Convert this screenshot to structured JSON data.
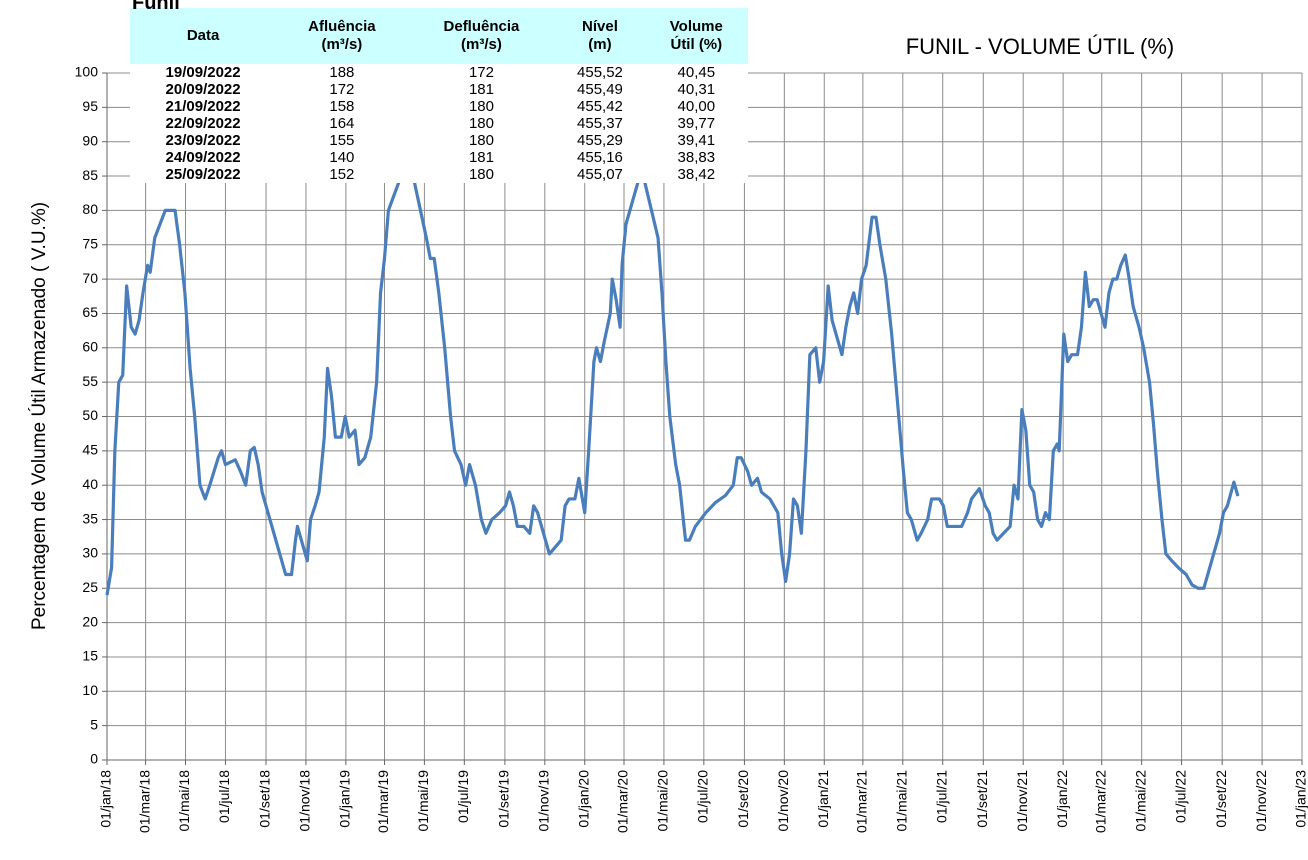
{
  "chart_data": {
    "type": "line",
    "title": "FUNIL - VOLUME ÚTIL (%)",
    "y_label": "Percentagem de Volume Útil Armazenado ( V.U.%)",
    "x": [
      "2018-01-01",
      "2018-01-08",
      "2018-01-13",
      "2018-01-19",
      "2018-01-25",
      "2018-01-31",
      "2018-02-07",
      "2018-02-13",
      "2018-02-19",
      "2018-02-25",
      "2018-03-04",
      "2018-03-08",
      "2018-03-15",
      "2018-03-31",
      "2018-04-15",
      "2018-04-22",
      "2018-04-30",
      "2018-05-08",
      "2018-05-15",
      "2018-05-23",
      "2018-05-31",
      "2018-06-07",
      "2018-06-20",
      "2018-06-25",
      "2018-07-01",
      "2018-07-16",
      "2018-07-24",
      "2018-08-01",
      "2018-08-08",
      "2018-08-14",
      "2018-08-20",
      "2018-08-26",
      "2018-09-07",
      "2018-09-19",
      "2018-10-01",
      "2018-10-10",
      "2018-10-16",
      "2018-10-19",
      "2018-10-25",
      "2018-11-03",
      "2018-11-08",
      "2018-11-15",
      "2018-11-21",
      "2018-11-29",
      "2018-12-04",
      "2018-12-10",
      "2018-12-16",
      "2018-12-25",
      "2018-12-31",
      "2019-01-06",
      "2019-01-15",
      "2019-01-21",
      "2019-01-30",
      "2019-02-08",
      "2019-02-17",
      "2019-02-23",
      "2019-03-01",
      "2019-03-07",
      "2019-04-07",
      "2019-05-04",
      "2019-05-10",
      "2019-05-16",
      "2019-05-23",
      "2019-06-01",
      "2019-06-10",
      "2019-06-16",
      "2019-06-26",
      "2019-07-03",
      "2019-07-09",
      "2019-07-18",
      "2019-07-27",
      "2019-08-03",
      "2019-08-12",
      "2019-08-24",
      "2019-09-02",
      "2019-09-08",
      "2019-09-14",
      "2019-09-20",
      "2019-09-30",
      "2019-10-09",
      "2019-10-15",
      "2019-10-21",
      "2019-10-30",
      "2019-11-08",
      "2019-11-17",
      "2019-11-26",
      "2019-12-02",
      "2019-12-08",
      "2019-12-17",
      "2019-12-23",
      "2020-01-01",
      "2020-01-07",
      "2020-01-15",
      "2020-01-19",
      "2020-01-25",
      "2020-01-31",
      "2020-02-09",
      "2020-02-12",
      "2020-02-18",
      "2020-02-24",
      "2020-02-27",
      "2020-03-04",
      "2020-03-28",
      "2020-04-22",
      "2020-04-28",
      "2020-05-04",
      "2020-05-10",
      "2020-05-19",
      "2020-05-25",
      "2020-06-03",
      "2020-06-09",
      "2020-06-18",
      "2020-07-04",
      "2020-07-19",
      "2020-08-03",
      "2020-08-15",
      "2020-08-21",
      "2020-08-27",
      "2020-09-06",
      "2020-09-12",
      "2020-09-21",
      "2020-09-27",
      "2020-10-10",
      "2020-10-22",
      "2020-10-28",
      "2020-11-03",
      "2020-11-09",
      "2020-11-15",
      "2020-11-21",
      "2020-11-27",
      "2020-12-04",
      "2020-12-10",
      "2020-12-19",
      "2020-12-25",
      "2020-12-31",
      "2021-01-07",
      "2021-01-13",
      "2021-01-19",
      "2021-01-28",
      "2021-02-03",
      "2021-02-09",
      "2021-02-15",
      "2021-02-21",
      "2021-02-27",
      "2021-03-06",
      "2021-03-15",
      "2021-03-21",
      "2021-03-27",
      "2021-04-05",
      "2021-04-14",
      "2021-04-23",
      "2021-05-02",
      "2021-05-08",
      "2021-05-14",
      "2021-05-23",
      "2021-05-29",
      "2021-06-08",
      "2021-06-14",
      "2021-06-26",
      "2021-07-02",
      "2021-07-08",
      "2021-07-17",
      "2021-07-30",
      "2021-08-08",
      "2021-08-14",
      "2021-08-26",
      "2021-09-04",
      "2021-09-10",
      "2021-09-16",
      "2021-09-22",
      "2021-10-02",
      "2021-10-12",
      "2021-10-18",
      "2021-10-24",
      "2021-10-30",
      "2021-11-05",
      "2021-11-11",
      "2021-11-17",
      "2021-11-23",
      "2021-11-29",
      "2021-12-05",
      "2021-12-11",
      "2021-12-17",
      "2021-12-23",
      "2021-12-26",
      "2022-01-02",
      "2022-01-08",
      "2022-01-14",
      "2022-01-23",
      "2022-01-29",
      "2022-02-04",
      "2022-02-10",
      "2022-02-16",
      "2022-02-22",
      "2022-02-28",
      "2022-03-06",
      "2022-03-12",
      "2022-03-18",
      "2022-03-24",
      "2022-03-30",
      "2022-04-06",
      "2022-04-12",
      "2022-04-18",
      "2022-04-27",
      "2022-05-04",
      "2022-05-13",
      "2022-05-19",
      "2022-05-25",
      "2022-06-01",
      "2022-06-07",
      "2022-06-16",
      "2022-06-26",
      "2022-07-08",
      "2022-07-17",
      "2022-07-26",
      "2022-08-04",
      "2022-08-10",
      "2022-08-19",
      "2022-08-28",
      "2022-09-03",
      "2022-09-09",
      "2022-09-19",
      "2022-09-25"
    ],
    "series": [
      {
        "name": "Volume Útil",
        "color": "#4a7ebb",
        "values": [
          24,
          28,
          45,
          55,
          56,
          69,
          63,
          62,
          64,
          68,
          72,
          71,
          76,
          80,
          80,
          75,
          68,
          57,
          50,
          40,
          38,
          40,
          44,
          45,
          43,
          43.7,
          42,
          40,
          45,
          45.5,
          43,
          39,
          35,
          31,
          27,
          27,
          32,
          34,
          32,
          29,
          35,
          37,
          39,
          47,
          57,
          53,
          47,
          47,
          50,
          47,
          48,
          43,
          44,
          47,
          55,
          68,
          73,
          80,
          88,
          76,
          73,
          73,
          68,
          60,
          50,
          45,
          43,
          40,
          43,
          40,
          35,
          33,
          35,
          36,
          37,
          39,
          37,
          34,
          34,
          33,
          37,
          36,
          33,
          30,
          31,
          32,
          37,
          38,
          38,
          41,
          36,
          45,
          58,
          60,
          58,
          61,
          65,
          70,
          67,
          63,
          72,
          78,
          86,
          76,
          68,
          58,
          50,
          43,
          40,
          32,
          32,
          34,
          36,
          37.5,
          38.5,
          40,
          44,
          44,
          42,
          40,
          41,
          39,
          38,
          36,
          30,
          26,
          30,
          38,
          37,
          33,
          45,
          59,
          60,
          55,
          58,
          69,
          64,
          62,
          59,
          63,
          66,
          68,
          65,
          70,
          72,
          79,
          79,
          75,
          70,
          62,
          52,
          42,
          36,
          35,
          32,
          33,
          35,
          38,
          38,
          37,
          34,
          34,
          34,
          36,
          38,
          39.5,
          37,
          36,
          33,
          32,
          33,
          34,
          40,
          38,
          51,
          48,
          40,
          39,
          35,
          34,
          36,
          35,
          45,
          46,
          45,
          62,
          58,
          59,
          59,
          63,
          71,
          66,
          67,
          67,
          65,
          63,
          68,
          70,
          70,
          72,
          73.5,
          70,
          66,
          63,
          60,
          55,
          49,
          42,
          35,
          30,
          29,
          28,
          27,
          25.5,
          25,
          25,
          27,
          30,
          33,
          36,
          37,
          40.45,
          38.42
        ]
      }
    ],
    "xlim": [
      "2018-01-01",
      "2023-01-01"
    ],
    "xticks": [
      {
        "value": "2018-01-01",
        "label": "01/jan/18"
      },
      {
        "value": "2018-03-01",
        "label": "01/mar/18"
      },
      {
        "value": "2018-05-01",
        "label": "01/mai/18"
      },
      {
        "value": "2018-07-01",
        "label": "01/jul/18"
      },
      {
        "value": "2018-09-01",
        "label": "01/set/18"
      },
      {
        "value": "2018-11-01",
        "label": "01/nov/18"
      },
      {
        "value": "2019-01-01",
        "label": "01/jan/19"
      },
      {
        "value": "2019-03-01",
        "label": "01/mar/19"
      },
      {
        "value": "2019-05-01",
        "label": "01/mai/19"
      },
      {
        "value": "2019-07-01",
        "label": "01/jul/19"
      },
      {
        "value": "2019-09-01",
        "label": "01/set/19"
      },
      {
        "value": "2019-11-01",
        "label": "01/nov/19"
      },
      {
        "value": "2020-01-01",
        "label": "01/jan/20"
      },
      {
        "value": "2020-03-01",
        "label": "01/mar/20"
      },
      {
        "value": "2020-05-01",
        "label": "01/mai/20"
      },
      {
        "value": "2020-07-01",
        "label": "01/jul/20"
      },
      {
        "value": "2020-09-01",
        "label": "01/set/20"
      },
      {
        "value": "2020-11-01",
        "label": "01/nov/20"
      },
      {
        "value": "2021-01-01",
        "label": "01/jan/21"
      },
      {
        "value": "2021-03-01",
        "label": "01/mar/21"
      },
      {
        "value": "2021-05-01",
        "label": "01/mai/21"
      },
      {
        "value": "2021-07-01",
        "label": "01/jul/21"
      },
      {
        "value": "2021-09-01",
        "label": "01/set/21"
      },
      {
        "value": "2021-11-01",
        "label": "01/nov/21"
      },
      {
        "value": "2022-01-01",
        "label": "01/jan/22"
      },
      {
        "value": "2022-03-01",
        "label": "01/mar/22"
      },
      {
        "value": "2022-05-01",
        "label": "01/mai/22"
      },
      {
        "value": "2022-07-01",
        "label": "01/jul/22"
      },
      {
        "value": "2022-09-01",
        "label": "01/set/22"
      },
      {
        "value": "2022-11-01",
        "label": "01/nov/22"
      },
      {
        "value": "2023-01-01",
        "label": "01/jan/23"
      }
    ],
    "ylim": [
      0,
      100
    ],
    "yticks": [
      0,
      5,
      10,
      15,
      20,
      25,
      30,
      35,
      40,
      45,
      50,
      55,
      60,
      65,
      70,
      75,
      80,
      85,
      90,
      95,
      100
    ],
    "grid": true
  },
  "table": {
    "title": "Funil",
    "header": [
      "Data",
      "Afluência\n(m³/s)",
      "Defluência\n(m³/s)",
      "Nível\n(m)",
      "Volume\nÚtil (%)"
    ],
    "rows": [
      [
        "19/09/2022",
        "188",
        "172",
        "455,52",
        "40,45"
      ],
      [
        "20/09/2022",
        "172",
        "181",
        "455,49",
        "40,31"
      ],
      [
        "21/09/2022",
        "158",
        "180",
        "455,42",
        "40,00"
      ],
      [
        "22/09/2022",
        "164",
        "180",
        "455,37",
        "39,77"
      ],
      [
        "23/09/2022",
        "155",
        "180",
        "455,29",
        "39,41"
      ],
      [
        "24/09/2022",
        "140",
        "181",
        "455,16",
        "38,83"
      ],
      [
        "25/09/2022",
        "152",
        "180",
        "455,07",
        "38,42"
      ]
    ]
  }
}
